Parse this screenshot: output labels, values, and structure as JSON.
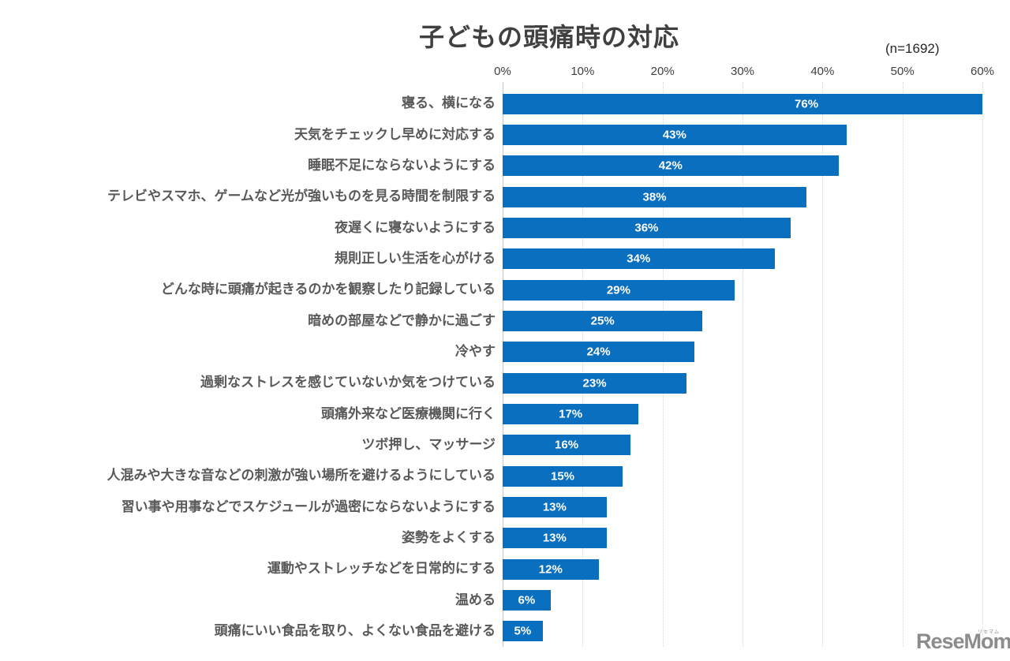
{
  "chart_data": {
    "type": "bar",
    "orientation": "horizontal",
    "title": "子どもの頭痛時の対応",
    "sample_size_label": "(n=1692)",
    "categories": [
      "寝る、横になる",
      "天気をチェックし早めに対応する",
      "睡眠不足にならないようにする",
      "テレビやスマホ、ゲームなど光が強いものを見る時間を制限する",
      "夜遅くに寝ないようにする",
      "規則正しい生活を心がける",
      "どんな時に頭痛が起きるのかを観察したり記録している",
      "暗めの部屋などで静かに過ごす",
      "冷やす",
      "過剰なストレスを感じていないか気をつけている",
      "頭痛外来など医療機関に行く",
      "ツボ押し、マッサージ",
      "人混みや大きな音などの刺激が強い場所を避けるようにしている",
      "習い事や用事などでスケジュールが過密にならないようにする",
      "姿勢をよくする",
      "運動やストレッチなどを日常的にする",
      "温める",
      "頭痛にいい食品を取り、よくない食品を避ける"
    ],
    "values": [
      76,
      43,
      42,
      38,
      36,
      34,
      29,
      25,
      24,
      23,
      17,
      16,
      15,
      13,
      13,
      12,
      6,
      5
    ],
    "value_labels": [
      "76%",
      "43%",
      "42%",
      "38%",
      "36%",
      "34%",
      "29%",
      "25%",
      "24%",
      "23%",
      "17%",
      "16%",
      "15%",
      "13%",
      "13%",
      "12%",
      "6%",
      "5%"
    ],
    "xlabel": "",
    "ylabel": "",
    "xlim": [
      0,
      60
    ],
    "x_ticks": [
      "0%",
      "10%",
      "20%",
      "30%",
      "40%",
      "50%",
      "60%"
    ],
    "grid": "vertical-dotted",
    "legend": "none",
    "colors": {
      "bar": "#0A6FBE",
      "value_label": "#FFFFFF",
      "title": "#404040",
      "category_label": "#595959",
      "tick_label": "#404040",
      "gridline": "#D6D6D6",
      "axis_line": "#C6C6C6"
    }
  },
  "watermark": {
    "text": "ReseMom.",
    "ruby": "リセマム",
    "color": "#8C8C8C"
  }
}
